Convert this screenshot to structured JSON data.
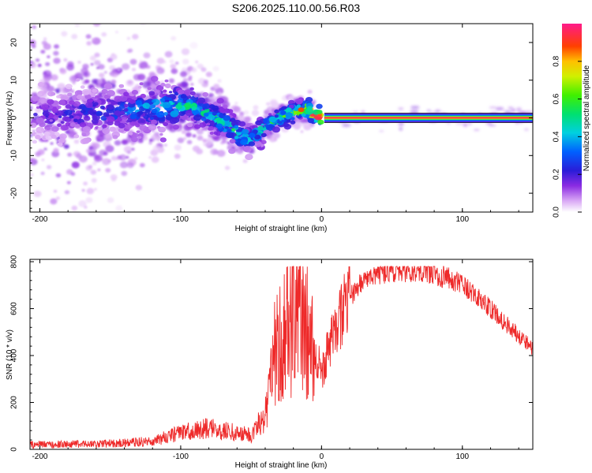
{
  "title": "S206.2025.110.00.56.R03",
  "colors": {
    "snr_line": "#ee2a2a",
    "axis": "#000000",
    "background": "#ffffff"
  },
  "chart_data": [
    {
      "type": "heatmap",
      "title": "S206.2025.110.00.56.R03",
      "xlabel": "Height of straight line (km)",
      "ylabel": "Frequency (Hz)",
      "xlim": [
        -207,
        150
      ],
      "ylim": [
        -25,
        25
      ],
      "xticks": [
        -200,
        -100,
        0,
        100
      ],
      "yticks": [
        -20,
        -10,
        0,
        10,
        20
      ],
      "colorbar": {
        "label": "Normalized spectral amplitude",
        "range": [
          0,
          1
        ],
        "ticks": [
          "0.0",
          "0.2",
          "0.4",
          "0.6",
          "0.8"
        ],
        "colormap": "rainbow"
      },
      "ridge": {
        "description_points_x": [
          -200,
          -150,
          -110,
          -100,
          -90,
          -75,
          -60,
          -50,
          -40,
          -30,
          -20,
          -10,
          -5,
          0,
          10,
          50,
          100,
          150
        ],
        "description_points_freq": [
          1,
          1.5,
          3,
          3.5,
          3,
          0,
          -4,
          -6,
          -2,
          0,
          1.5,
          2.5,
          0.5,
          0,
          0,
          0,
          0,
          0
        ],
        "amplitude": [
          0.15,
          0.2,
          0.3,
          0.35,
          0.35,
          0.35,
          0.35,
          0.3,
          0.35,
          0.45,
          0.5,
          0.6,
          0.7,
          0.9,
          0.95,
          0.95,
          0.95,
          0.95
        ]
      }
    },
    {
      "type": "line",
      "xlabel": "Height of straight line (km)",
      "ylabel": "SNR (10 * v/v)",
      "xlim": [
        -207,
        150
      ],
      "ylim": [
        0,
        810
      ],
      "xticks": [
        -200,
        -100,
        0,
        100
      ],
      "yticks": [
        0,
        200,
        400,
        600,
        800
      ],
      "series": [
        {
          "x": [
            -207,
            -180,
            -150,
            -120,
            -100,
            -80,
            -60,
            -50,
            -40,
            -35,
            -30,
            -25,
            -20,
            -15,
            -10,
            -5,
            0,
            5,
            10,
            20,
            30,
            40,
            50,
            60,
            70,
            80,
            90,
            100,
            110,
            120,
            130,
            140,
            150
          ],
          "y": [
            20,
            22,
            25,
            35,
            70,
            90,
            70,
            60,
            150,
            350,
            400,
            450,
            500,
            600,
            450,
            420,
            330,
            420,
            520,
            650,
            720,
            750,
            760,
            760,
            765,
            750,
            730,
            700,
            650,
            600,
            540,
            490,
            430
          ]
        }
      ]
    }
  ]
}
